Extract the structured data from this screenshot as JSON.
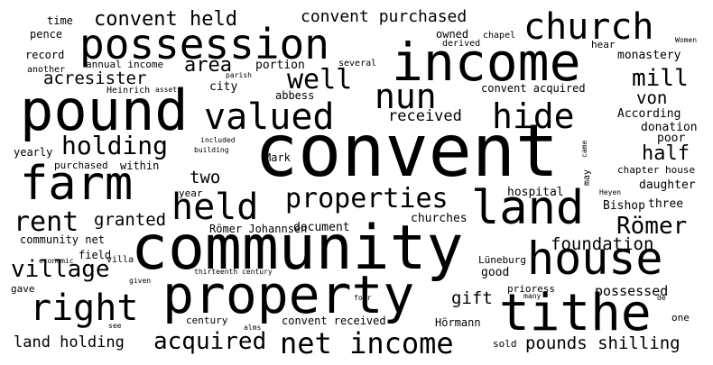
{
  "word_cloud": {
    "background": "#ffffff",
    "ink": "#000000",
    "words": [
      "convent",
      "community",
      "property",
      "pound",
      "income",
      "farm",
      "possession",
      "tithe",
      "land",
      "house",
      "church",
      "nun",
      "valued",
      "held",
      "hide",
      "properties",
      "right",
      "net income",
      "rent",
      "holding",
      "village",
      "well",
      "acquired",
      "Römer",
      "mill",
      "area",
      "convent held",
      "convent purchased",
      "half",
      "granted",
      "foundation",
      "acresister",
      "gift",
      "two",
      "von",
      "pounds shilling",
      "land holding",
      "received",
      "possessed",
      "Römer Johannsen",
      "document",
      "churches",
      "hospital",
      "Bishop",
      "three",
      "daughter",
      "poor",
      "monastery",
      "According",
      "donation",
      "chapter house",
      "convent received",
      "convent acquired",
      "community net",
      "Mark",
      "good",
      "Hörmann",
      "city",
      "abbess",
      "time",
      "pence",
      "record",
      "another",
      "owned",
      "derived",
      "chapel",
      "hear",
      "Women",
      "annual income",
      "portion",
      "several",
      "parish",
      "Heinrich",
      "assets",
      "yearly",
      "purchased",
      "within",
      "included",
      "building",
      "villa",
      "economic",
      "field",
      "given",
      "gave",
      "year",
      "century",
      "thirteenth century",
      "see",
      "alms",
      "sold",
      "Lüneburg",
      "prioress",
      "many",
      "four",
      "de",
      "one",
      "Heyen",
      "may",
      "came"
    ]
  }
}
